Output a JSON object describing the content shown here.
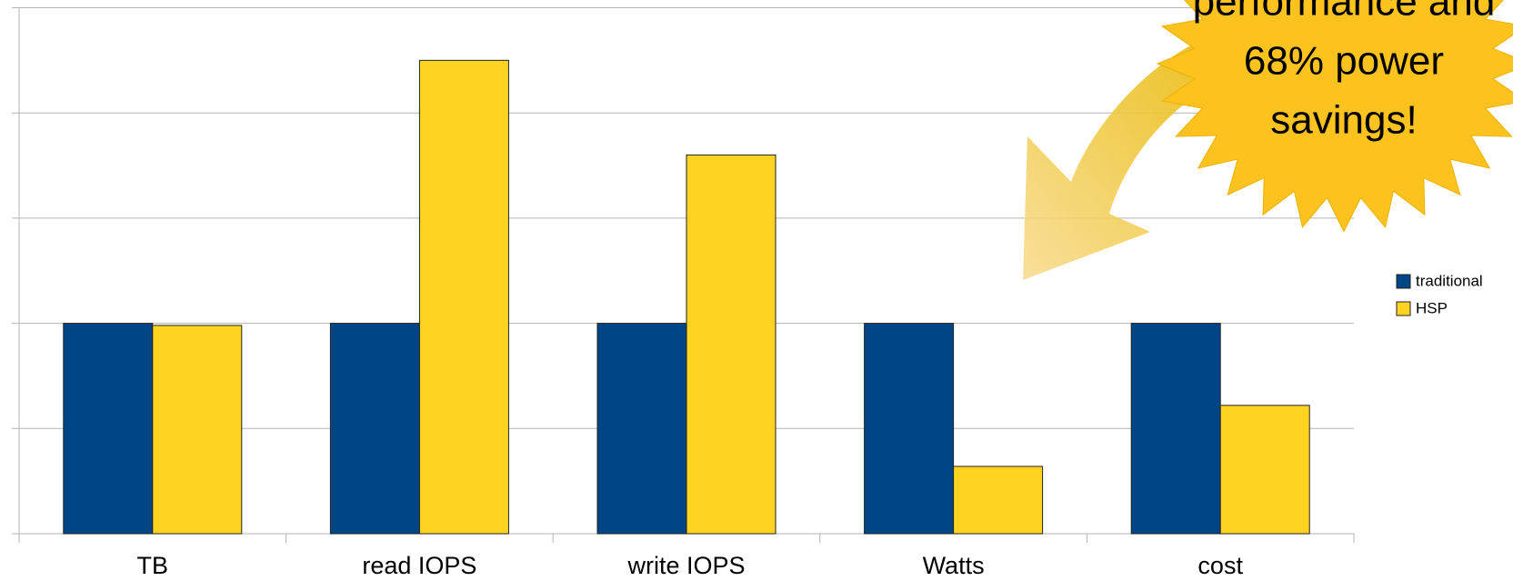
{
  "chart_data": {
    "type": "bar",
    "categories": [
      "TB",
      "read IOPS",
      "write IOPS",
      "Watts",
      "cost"
    ],
    "series": [
      {
        "name": "traditional",
        "color": "#004586",
        "values": [
          1,
          1,
          1,
          1,
          1
        ]
      },
      {
        "name": "HSP",
        "color": "#ffd320",
        "values": [
          0.99,
          2.25,
          1.8,
          0.32,
          0.61
        ]
      }
    ],
    "ylim": [
      0,
      2.5
    ],
    "yticks": [
      0,
      0.5,
      1,
      1.5,
      2,
      2.5
    ],
    "grid": true,
    "legend": "right",
    "annotation": [
      "performance and",
      "68% power",
      "savings!"
    ]
  }
}
